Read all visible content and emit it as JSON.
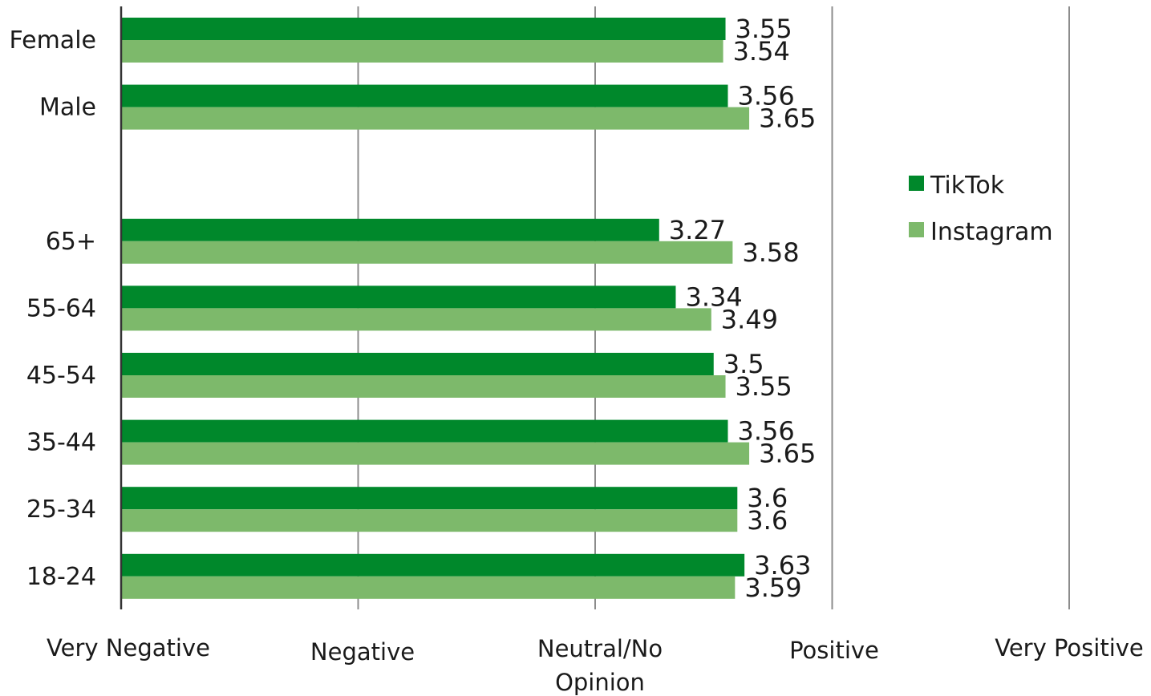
{
  "chart_data": {
    "type": "bar",
    "orientation": "horizontal",
    "categories": [
      "Female",
      "Male",
      "",
      "65+",
      "55-64",
      "45-54",
      "35-44",
      "25-34",
      "18-24"
    ],
    "series": [
      {
        "name": "TikTok",
        "color": "#00882b",
        "values": [
          3.55,
          3.56,
          null,
          3.27,
          3.34,
          3.5,
          3.56,
          3.6,
          3.63
        ],
        "labels": [
          "3.55",
          "3.56",
          "",
          "3.27",
          "3.34",
          "3.5",
          "3.56",
          "3.6",
          "3.63"
        ]
      },
      {
        "name": "Instagram",
        "color": "#7db96b",
        "values": [
          3.54,
          3.65,
          null,
          3.58,
          3.49,
          3.55,
          3.65,
          3.6,
          3.59
        ],
        "labels": [
          "3.54",
          "3.65",
          "",
          "3.58",
          "3.49",
          "3.55",
          "3.65",
          "3.6",
          "3.59"
        ]
      }
    ],
    "xlim": [
      1,
      5
    ],
    "x_ticks": [
      1,
      2,
      3,
      4,
      5
    ],
    "x_tick_labels": [
      "Very Negative",
      "Negative",
      "Neutral/No Opinion",
      "Positive",
      "Very Positive"
    ],
    "grid": "vertical",
    "legend": "right",
    "title": "",
    "xlabel": "",
    "ylabel": ""
  }
}
